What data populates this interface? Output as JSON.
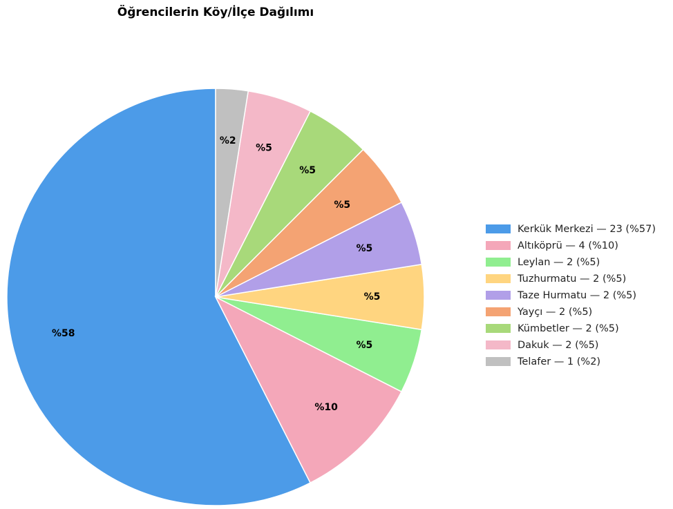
{
  "chart_data": {
    "type": "pie",
    "title": "Öğrencilerin Köy/İlçe Dağılımı",
    "categories": [
      "Kerkük Merkezi — 23 (%57)",
      "Altıköprü — 4 (%10)",
      "Leylan — 2 (%5)",
      "Tuzhurmatu — 2 (%5)",
      "Taze Hurmatu — 2 (%5)",
      "Yayçı — 2 (%5)",
      "Kümbetler — 2 (%5)",
      "Dakuk — 2 (%5)",
      "Telafer — 1 (%2)"
    ],
    "values": [
      57.5,
      10,
      5,
      5,
      5,
      5,
      5,
      5,
      2.5
    ],
    "value_labels": [
      "%58",
      "%10",
      "%5",
      "%5",
      "%5",
      "%5",
      "%5",
      "%5",
      "%2"
    ],
    "colors": [
      "#4c9be8",
      "#f4a7b9",
      "#90ee90",
      "#ffd580",
      "#b19fe8",
      "#f4a373",
      "#a8d97a",
      "#f4b8c8",
      "#c0c0c0"
    ],
    "start_angle": 90,
    "direction": "counterclockwise",
    "legend": "right"
  }
}
